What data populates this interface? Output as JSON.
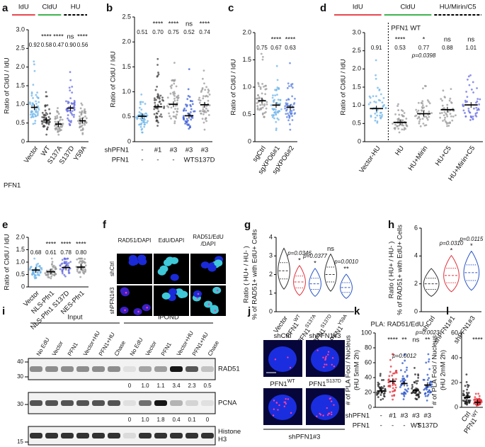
{
  "panel_letters": [
    "a",
    "b",
    "c",
    "d",
    "e",
    "f",
    "g",
    "h",
    "i",
    "j",
    "k",
    "l"
  ],
  "chart_data": [
    {
      "type": "dotplot",
      "header": [
        "IdU",
        "CldU",
        "HU"
      ],
      "header_colors": [
        "#e8484f",
        "#3fb34f",
        "#000000"
      ],
      "ylabel": "Ratio of CldU / IdU",
      "categories": [
        "Vector",
        "WT",
        "S137A",
        "S137D",
        "Y59A"
      ],
      "row_label": "PFN1",
      "values": [
        0.92,
        0.58,
        0.47,
        0.9,
        0.56
      ],
      "value_labels": [
        "0.92",
        "0.58",
        "0.47",
        "0.90",
        "0.56"
      ],
      "significance": [
        null,
        "****",
        "****",
        "ns",
        "****"
      ],
      "colors": [
        "#6fb6ea",
        "#444444",
        "#999999",
        "#6a6fe0",
        "#999999"
      ],
      "ylim": [
        0,
        3
      ],
      "yticks": [
        0,
        0.5,
        {
          "value": 1,
          "label": "1.0"
        },
        1.5,
        {
          "value": 2,
          "label": "2.0"
        },
        2.5,
        {
          "value": 3,
          "label": "3.0"
        }
      ]
    },
    {
      "type": "dotplot",
      "ylabel": "Ratio of CldU / IdU",
      "rows": [
        {
          "label": "shPFN1",
          "values": [
            "-",
            "#1",
            "#3",
            "#3",
            "#3"
          ]
        },
        {
          "label": "PFN1",
          "values": [
            "-",
            "-",
            "-",
            "WT",
            "S137D"
          ]
        }
      ],
      "values": [
        0.51,
        0.7,
        0.75,
        0.52,
        0.74
      ],
      "value_labels": [
        "0.51",
        "0.70",
        "0.75",
        "0.52",
        "0.74"
      ],
      "significance": [
        null,
        "****",
        "****",
        "ns",
        "****"
      ],
      "colors": [
        "#6fb6ea",
        "#444444",
        "#999999",
        "#3d5fd8",
        "#999999"
      ],
      "ylim": [
        0,
        2.5
      ],
      "yticks": [
        0,
        0.5,
        {
          "value": 1,
          "label": "1.0"
        },
        1.5,
        {
          "value": 2,
          "label": "2.0"
        },
        2.5
      ]
    },
    {
      "type": "dotplot",
      "ylabel": "Ratio of CldU / IdU",
      "categories": [
        "sgCtrl",
        "sgXPO6#1",
        "sgXPO6#2"
      ],
      "values": [
        0.75,
        0.67,
        0.63
      ],
      "value_labels": [
        "0.75",
        "0.67",
        "0.63"
      ],
      "significance": [
        null,
        "****",
        "****"
      ],
      "colors": [
        "#999999",
        "#6fb6ea",
        "#5a7fe0"
      ],
      "ylim": [
        0,
        2
      ],
      "yticks": [
        0,
        0.5,
        {
          "value": 1,
          "label": "1.0"
        },
        1.5,
        {
          "value": 2,
          "label": "2.0"
        }
      ]
    },
    {
      "type": "dotplot",
      "header": [
        "IdU",
        "CldU",
        "HU/Mirin/C5"
      ],
      "header_colors": [
        "#e8484f",
        "#3fb34f",
        "#000000"
      ],
      "annotation": "PFN1 WT",
      "ylabel": "Ratio of CldU / IdU",
      "categories": [
        "Vector-HU",
        "HU",
        "HU+Mirin",
        "HU+C5",
        "HU+Mirin+C5"
      ],
      "values": [
        0.91,
        0.53,
        0.77,
        0.88,
        1.01
      ],
      "value_labels": [
        "0.91",
        "0.53",
        "0.77",
        "0.88",
        "1.01"
      ],
      "significance": [
        null,
        "****",
        "*",
        "ns",
        "ns"
      ],
      "p_values": [
        null,
        null,
        "p=0.0398",
        null,
        null
      ],
      "colors": [
        "#6fb6ea",
        "#999999",
        "#999999",
        "#999999",
        "#6a6fe0"
      ],
      "ylim": [
        0,
        3
      ],
      "yticks": [
        0,
        0.5,
        {
          "value": 1,
          "label": "1.0"
        },
        1.5,
        {
          "value": 2,
          "label": "2.0"
        },
        2.5,
        {
          "value": 3,
          "label": "3.0"
        }
      ]
    },
    {
      "type": "dotplot",
      "ylabel": "Ratio of CldU / IdU",
      "categories": [
        "Vector",
        "NLS-Pfn1",
        "NLS-Pfn1 S137D",
        "NES-Pfn1"
      ],
      "values": [
        0.68,
        0.61,
        0.78,
        0.8
      ],
      "value_labels": [
        "0.68",
        "0.61",
        "0.78",
        "0.80"
      ],
      "significance": [
        null,
        "****",
        "****",
        "****"
      ],
      "colors": [
        "#6fb6ea",
        "#999999",
        "#6a6fe0",
        "#999999"
      ],
      "ylim": [
        0,
        2
      ],
      "yticks": [
        0,
        0.5,
        {
          "value": 1,
          "label": "1.0"
        },
        1.5,
        {
          "value": 2,
          "label": "2.0"
        }
      ]
    },
    {
      "type": "violin",
      "ylabel": "Ratio ( HU+ / HU- )",
      "ylabel2": "% of RAD51+ with EdU+ Cells",
      "categories": [
        "Vector",
        "PFN1",
        "PFN1",
        "PFN1",
        "PFN1"
      ],
      "category_superscripts": [
        null,
        "WT",
        "S137A",
        "S137D",
        "Y59A"
      ],
      "values": [
        2.2,
        1.6,
        1.5,
        2.0,
        1.3
      ],
      "significance": [
        null,
        "*",
        "*",
        "ns",
        "**"
      ],
      "p_values": [
        null,
        "p=0.0346",
        "p=0.0377",
        null,
        "p=0.0010"
      ],
      "colors": [
        "#333333",
        "#e0303a",
        "#2b55c8",
        "#333333",
        "#2b55c8"
      ],
      "ylim": [
        0,
        4
      ],
      "yticks": [
        0,
        1,
        2,
        3,
        4
      ]
    },
    {
      "type": "violin",
      "ylabel": "Ratio ( HU+ / HU- )",
      "ylabel2": "% of RAD51+ with EdU+ Cells",
      "categories": [
        "shCtrl",
        "shPFN1#1",
        "shPFN1#3"
      ],
      "values": [
        2.0,
        2.6,
        2.8
      ],
      "significance": [
        null,
        "*",
        "*"
      ],
      "p_values": [
        null,
        "p=0.0310",
        "p=0.0115"
      ],
      "colors": [
        "#333333",
        "#e0303a",
        "#2b55c8"
      ],
      "ylim": [
        0,
        6
      ],
      "yticks": [
        0,
        2,
        4,
        6
      ]
    },
    {
      "type": "dotplot",
      "title": "PLA: RAD51/EdU",
      "ylabel": "# of PLA Foci / Nucleus",
      "ylabel2": "(HU 5mM 2h)",
      "rows": [
        {
          "label": "shPFN1",
          "values": [
            "-",
            "#1",
            "#3",
            "#3",
            "#3"
          ]
        },
        {
          "label": "PFN1",
          "values": [
            "-",
            "-",
            "-",
            "WT",
            "S137D"
          ]
        }
      ],
      "values": [
        22,
        35,
        32,
        23,
        30
      ],
      "significance": [
        null,
        "****",
        "**",
        "ns",
        "**"
      ],
      "p_values": [
        null,
        null,
        "p=0.0012",
        null,
        "p=0.0023"
      ],
      "colors": [
        "#222222",
        "#e0303a",
        "#2b55c8",
        "#222222",
        "#2b55c8"
      ],
      "ylim": [
        0,
        100
      ],
      "yticks": [
        0,
        20,
        40,
        60,
        80,
        100
      ]
    },
    {
      "type": "dotplot",
      "ylabel": "# of PLA Foci / Nucleus",
      "ylabel2": "(HU 2mM 2h)",
      "categories": [
        "Ctrl",
        "PFN1"
      ],
      "category_superscripts": [
        null,
        "WT"
      ],
      "values": [
        8,
        4
      ],
      "significance": [
        null,
        "****"
      ],
      "colors": [
        "#222222",
        "#e0303a"
      ],
      "ylim": [
        0,
        60
      ],
      "yticks": [
        0,
        20,
        40,
        60
      ]
    }
  ],
  "microscopy_f": {
    "columns": [
      [
        "RAD51/DAPI"
      ],
      [
        "EdU/DAPI"
      ],
      [
        "RAD51/EdU",
        "/DAPI"
      ]
    ],
    "rows": [
      "shCtrl",
      "shPFN1#3"
    ]
  },
  "blot": {
    "groups": [
      "Input",
      "iPOND"
    ],
    "lanes": [
      "No EdU",
      "Vector",
      "PFN1",
      "Vector+HU",
      "PFN1+HU",
      "Chase",
      "No EdU",
      "Vector",
      "PFN1",
      "Vector+HU",
      "PFN1+HU",
      "Chase"
    ],
    "proteins": [
      [
        "RAD51"
      ],
      [
        "PCNA"
      ],
      [
        "Histone",
        "H3"
      ]
    ],
    "mw_markers": [
      40,
      30,
      30,
      15
    ],
    "quantification": [
      {
        "values": [
          0,
          1.0,
          1.1,
          3.4,
          2.3,
          0.5
        ],
        "value_labels": [
          "0",
          "1.0",
          "1.1",
          "3.4",
          "2.3",
          "0.5"
        ]
      },
      {
        "values": [
          0,
          1.0,
          1.8,
          0.4,
          0.1,
          0
        ],
        "value_labels": [
          "0",
          "1.0",
          "1.8",
          "0.4",
          "0.1",
          "0"
        ]
      }
    ]
  },
  "microscopy_j": {
    "labels": [
      "shCtrl",
      "shPFN1#3",
      "PFN1",
      "PFN1"
    ],
    "superscripts": [
      null,
      null,
      "WT",
      "S137D"
    ],
    "footer": "shPFN1#3"
  }
}
